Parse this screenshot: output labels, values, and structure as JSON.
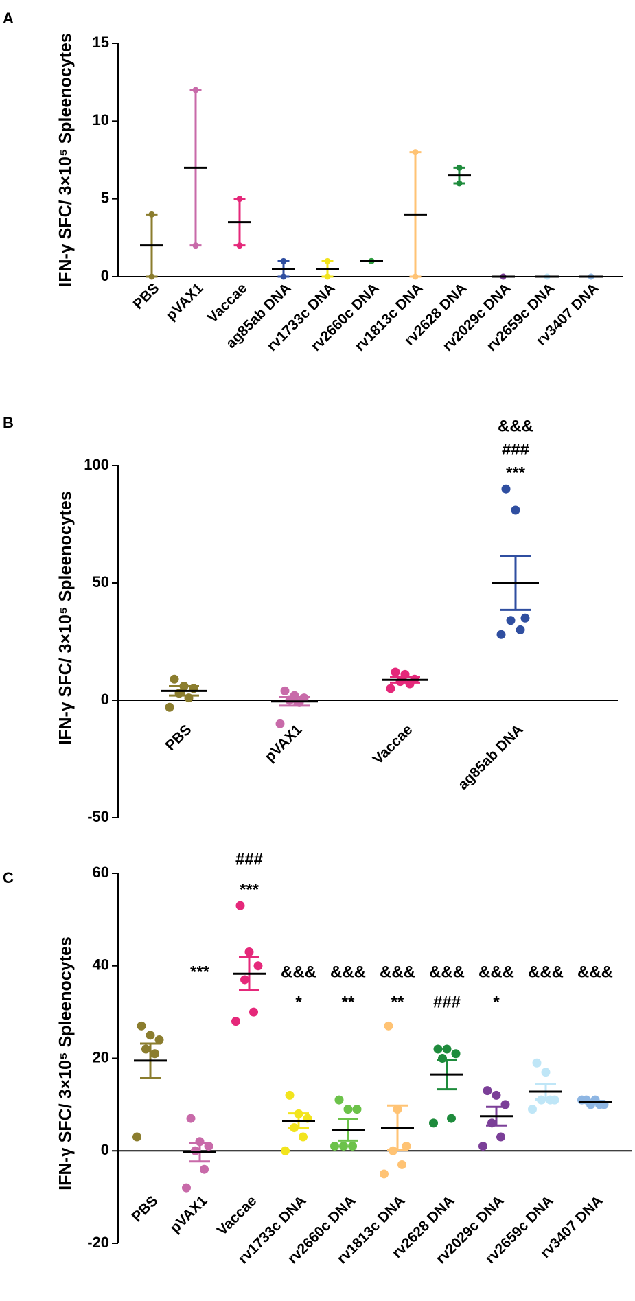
{
  "chart_data": [
    {
      "type": "dot",
      "panel": "A",
      "ylabel": "IFN-γ SFC/ 3×10⁵ Spleenocytes",
      "ylim": [
        0,
        15
      ],
      "yticks": [
        0,
        5,
        10,
        15
      ],
      "series": [
        {
          "name": "PBS",
          "color": "#8b7d2e",
          "values": [
            0,
            4
          ],
          "mean": 2,
          "error": 2
        },
        {
          "name": "pVAX1",
          "color": "#c86aa9",
          "values": [
            2,
            12
          ],
          "mean": 7,
          "error": 5
        },
        {
          "name": "Vaccae",
          "color": "#e5287a",
          "values": [
            2,
            5
          ],
          "mean": 3.5,
          "error": 1.5
        },
        {
          "name": "ag85ab DNA",
          "color": "#2f4ea0",
          "values": [
            0,
            1
          ],
          "mean": 0.5,
          "error": 0.5
        },
        {
          "name": "rv1733c DNA",
          "color": "#f2e41d",
          "values": [
            0,
            1
          ],
          "mean": 0.5,
          "error": 0.5
        },
        {
          "name": "rv2660c DNA",
          "color": "#2e9d3f",
          "values": [
            1,
            1
          ],
          "mean": 1,
          "error": 0
        },
        {
          "name": "rv1813c DNA",
          "color": "#ffc374",
          "values": [
            0,
            8
          ],
          "mean": 4,
          "error": 4
        },
        {
          "name": "rv2628 DNA",
          "color": "#1e8b3c",
          "values": [
            6,
            7
          ],
          "mean": 6.5,
          "error": 0.5
        },
        {
          "name": "rv2029c DNA",
          "color": "#7b3f98",
          "values": [
            0,
            0
          ],
          "mean": 0,
          "error": 0
        },
        {
          "name": "rv2659c DNA",
          "color": "#bfe6f7",
          "values": [
            0,
            0
          ],
          "mean": 0,
          "error": 0
        },
        {
          "name": "rv3407 DNA",
          "color": "#8eb6e3",
          "values": [
            0,
            0
          ],
          "mean": 0,
          "error": 0
        }
      ]
    },
    {
      "type": "dot",
      "panel": "B",
      "ylabel": "IFN-γ SFC/ 3×10⁵ Spleenocytes",
      "ylim": [
        -50,
        100
      ],
      "yticks": [
        -50,
        0,
        50,
        100
      ],
      "series": [
        {
          "name": "PBS",
          "color": "#8b7d2e",
          "values": [
            9,
            6,
            5,
            3,
            1,
            -3
          ],
          "mean": 4,
          "error": 2
        },
        {
          "name": "pVAX1",
          "color": "#c86aa9",
          "values": [
            4,
            2,
            1,
            0,
            -1,
            -10
          ],
          "mean": -0.5,
          "error": 1.8
        },
        {
          "name": "Vaccae",
          "color": "#e5287a",
          "values": [
            12,
            11,
            9,
            8,
            7,
            5
          ],
          "mean": 8.7,
          "error": 1.2
        },
        {
          "name": "ag85ab DNA",
          "color": "#2f4ea0",
          "values": [
            90,
            81,
            35,
            34,
            30,
            28
          ],
          "mean": 50,
          "error": 11.5,
          "annotations": [
            "&&&",
            "###",
            "***"
          ]
        }
      ]
    },
    {
      "type": "dot",
      "panel": "C",
      "ylabel": "IFN-γ SFC/ 3×10⁵ Spleenocytes",
      "ylim": [
        -20,
        60
      ],
      "yticks": [
        -20,
        0,
        20,
        40,
        60
      ],
      "series": [
        {
          "name": "PBS",
          "color": "#8b7d2e",
          "values": [
            27,
            25,
            24,
            22,
            21,
            3
          ],
          "mean": 19.5,
          "error": 3.7
        },
        {
          "name": "pVAX1",
          "color": "#c86aa9",
          "values": [
            7,
            2,
            1,
            0,
            -4,
            -8
          ],
          "mean": -0.3,
          "error": 2,
          "annotations": [
            "***"
          ]
        },
        {
          "name": "Vaccae",
          "color": "#e5287a",
          "values": [
            53,
            43,
            40,
            37,
            30,
            28
          ],
          "mean": 38.3,
          "error": 3.6,
          "annotations": [
            "###",
            "***"
          ]
        },
        {
          "name": "rv1733c DNA",
          "color": "#f2e41d",
          "values": [
            12,
            8,
            7,
            5,
            3,
            0
          ],
          "mean": 6.5,
          "error": 1.6,
          "annotations": [
            "&&&",
            "*"
          ]
        },
        {
          "name": "rv2660c DNA",
          "color": "#6cc24a",
          "values": [
            11,
            9,
            9,
            1,
            1,
            1
          ],
          "mean": 4.5,
          "error": 2.3,
          "annotations": [
            "&&&",
            "**"
          ]
        },
        {
          "name": "rv1813c DNA",
          "color": "#ffc374",
          "values": [
            27,
            9,
            1,
            0,
            -3,
            -5
          ],
          "mean": 5,
          "error": 4.8,
          "annotations": [
            "&&&",
            "**"
          ]
        },
        {
          "name": "rv2628 DNA",
          "color": "#1e8b3c",
          "values": [
            22,
            22,
            21,
            20,
            7,
            6
          ],
          "mean": 16.5,
          "error": 3.2,
          "annotations": [
            "&&&",
            "###"
          ]
        },
        {
          "name": "rv2029c DNA",
          "color": "#7b3f98",
          "values": [
            13,
            12,
            10,
            6,
            3,
            1
          ],
          "mean": 7.5,
          "error": 2,
          "annotations": [
            "&&&",
            "*"
          ]
        },
        {
          "name": "rv2659c DNA",
          "color": "#bfe6f7",
          "values": [
            19,
            17,
            11,
            11,
            11,
            9
          ],
          "mean": 12.8,
          "error": 1.7,
          "annotations": [
            "&&&"
          ]
        },
        {
          "name": "rv3407 DNA",
          "color": "#8eb6e3",
          "values": [
            11,
            11,
            10,
            10,
            10,
            11
          ],
          "mean": 10.6,
          "error": 0.2,
          "annotations": [
            "&&&"
          ]
        }
      ]
    }
  ]
}
